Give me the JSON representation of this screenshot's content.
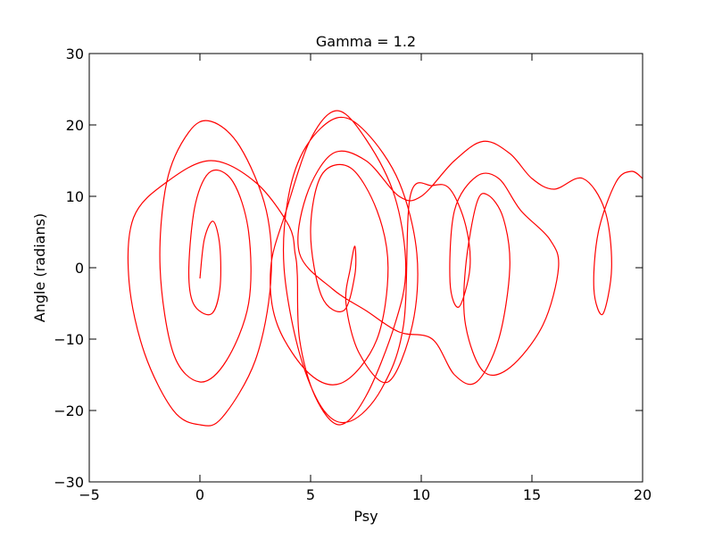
{
  "chart_data": {
    "type": "line",
    "title": "Gamma = 1.2",
    "x_label": "Psy",
    "y_label": "Angle (radians)",
    "xlim": [
      -5,
      20
    ],
    "ylim": [
      -30,
      30
    ],
    "xticks": [
      {
        "value": -5,
        "label": "−5"
      },
      0,
      5,
      10,
      15,
      20
    ],
    "yticks": [
      {
        "value": -30,
        "label": "−30"
      },
      {
        "value": -20,
        "label": "−20"
      },
      {
        "value": -10,
        "label": "−10"
      },
      0,
      10,
      20,
      30
    ],
    "grid": false,
    "series": [
      {
        "color": "#ff0000",
        "x": [
          0,
          0.2,
          0.6,
          0.9,
          0.9,
          0.5,
          -0.3,
          -0.5,
          -0.2,
          0.5,
          1.5,
          2.2,
          2.2,
          1.2,
          0,
          -1.2,
          -1.8,
          -1.5,
          -0.5,
          0.5,
          1.8,
          3,
          3.2,
          2.5,
          1,
          0,
          -1.2,
          -2.5,
          -3.2,
          -3,
          -1.5,
          0.5,
          2.5,
          4,
          4.3,
          4.4,
          4.5,
          5.2,
          6.3,
          7.5,
          8.8,
          9.3,
          8.8,
          7.5,
          6.2,
          5,
          3.9,
          3.2,
          3.5,
          5,
          6.5,
          8,
          8.5,
          8,
          6.8,
          5.5,
          5,
          5.5,
          6.5,
          7,
          7,
          6.8,
          6.6,
          7.2,
          8.5,
          9.6,
          9.8,
          9,
          7.5,
          6.2,
          4.8,
          4,
          3.8,
          4.5,
          5.6,
          6.8,
          8.2,
          9.2,
          9.5,
          10.5,
          11.3,
          12,
          12.2,
          11.7,
          11.3,
          11.5,
          12.5,
          13.5,
          14.5,
          15.8,
          16.2,
          15.5,
          14,
          12.8,
          12,
          12,
          12.5,
          13,
          13.7,
          14,
          13.5,
          12.5,
          11.5,
          10.5,
          9,
          7.5,
          6,
          4.5,
          4.8,
          6,
          7.5,
          9,
          10,
          11.5,
          12.8,
          14,
          15,
          16,
          17.3,
          18.3,
          18.6,
          18.2,
          17.8,
          18,
          18.8,
          19.5,
          20
        ],
        "y": [
          -1.5,
          4,
          6.5,
          3,
          -3,
          -6.5,
          -5,
          0,
          9,
          13.5,
          12,
          5,
          -5,
          -13,
          -16,
          -12,
          0,
          12,
          19,
          20.5,
          17,
          8,
          -2,
          -13,
          -21,
          -22,
          -20,
          -12,
          -2,
          7,
          12,
          15,
          12,
          6,
          2,
          -1,
          -10,
          -18,
          -22,
          -18,
          -8,
          0,
          10,
          18,
          22,
          18,
          8,
          0,
          -8,
          -15,
          -16,
          -10,
          0,
          8,
          14,
          13,
          5,
          -4,
          -6,
          -1,
          3,
          0,
          -5,
          -12,
          -16,
          -8,
          2,
          12,
          19,
          21,
          17,
          10,
          0,
          -12,
          -20,
          -21.5,
          -17,
          -8,
          10,
          11.5,
          11,
          6,
          0,
          -5.5,
          -2,
          8,
          12.8,
          12.5,
          8,
          4,
          0,
          -8,
          -14,
          -14.5,
          -8,
          0,
          9,
          10.2,
          7,
          0,
          -10,
          -16,
          -15,
          -10,
          -9,
          -6,
          -3,
          2,
          10,
          16,
          15,
          10,
          10,
          15,
          17.7,
          16,
          12.5,
          11,
          12.5,
          8,
          0,
          -6.5,
          -3,
          5,
          12,
          13.5,
          12.5
        ]
      }
    ]
  }
}
